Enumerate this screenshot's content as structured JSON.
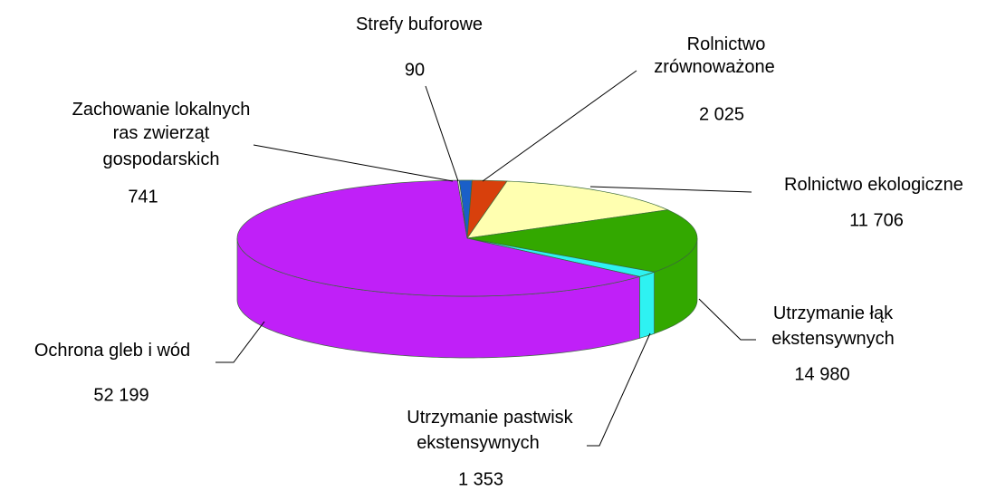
{
  "chart_data": {
    "type": "pie3d",
    "categories": [
      "Zachowanie lokalnych\nras zwierząt\ngospodarskich",
      "Rolnictwo\nzrównoważone",
      "Rolnictwo ekologiczne",
      "Utrzymanie łąk\nekstensywnych",
      "Utrzymanie pastwisk\nekstensywnych",
      "Ochrona gleb i wód",
      "Strefy buforowe"
    ],
    "values": [
      741,
      2025,
      11706,
      14980,
      1353,
      52199,
      90
    ],
    "value_labels": [
      "741",
      "2 025",
      "11 706",
      "14 980",
      "1 353",
      "52 199",
      "90"
    ],
    "colors": [
      "#1a5fc8",
      "#d8400c",
      "#ffffb0",
      "#33a800",
      "#2ef2f2",
      "#c020f8",
      "#f0f0f0"
    ]
  }
}
